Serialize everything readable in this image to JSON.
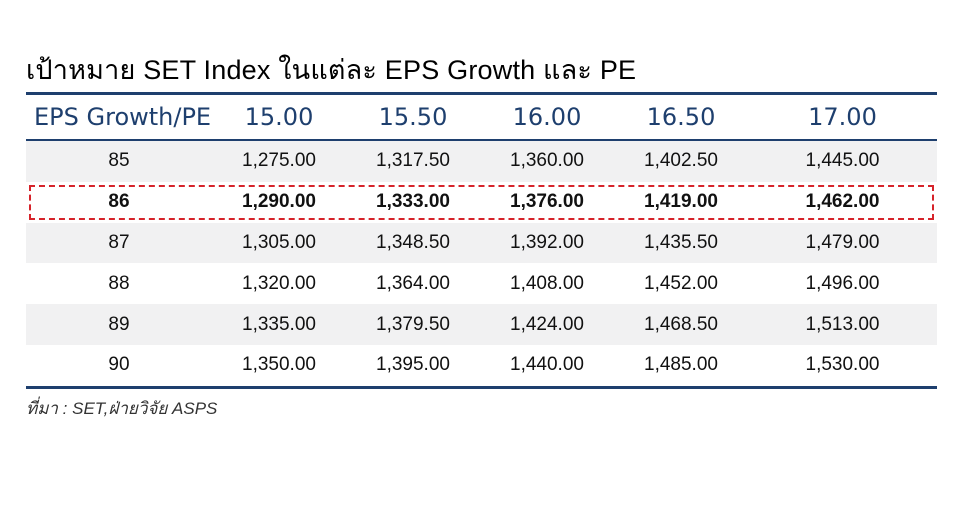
{
  "title": "เป้าหมาย SET Index ในแต่ละ EPS Growth และ PE",
  "table": {
    "header": [
      "EPS Growth/PE",
      "15.00",
      "15.50",
      "16.00",
      "16.50",
      "17.00"
    ],
    "rows": [
      {
        "eps": "85",
        "values": [
          "1,275.00",
          "1,317.50",
          "1,360.00",
          "1,402.50",
          "1,445.00"
        ]
      },
      {
        "eps": "86",
        "values": [
          "1,290.00",
          "1,333.00",
          "1,376.00",
          "1,419.00",
          "1,462.00"
        ]
      },
      {
        "eps": "87",
        "values": [
          "1,305.00",
          "1,348.50",
          "1,392.00",
          "1,435.50",
          "1,479.00"
        ]
      },
      {
        "eps": "88",
        "values": [
          "1,320.00",
          "1,364.00",
          "1,408.00",
          "1,452.00",
          "1,496.00"
        ]
      },
      {
        "eps": "89",
        "values": [
          "1,335.00",
          "1,379.50",
          "1,424.00",
          "1,468.50",
          "1,513.00"
        ]
      },
      {
        "eps": "90",
        "values": [
          "1,350.00",
          "1,395.00",
          "1,440.00",
          "1,485.00",
          "1,530.00"
        ]
      }
    ],
    "highlighted_row": "86"
  },
  "source": "ที่มา : SET,ฝ่ายวิจัย ASPS",
  "colors": {
    "header_text": "#1e3f6e",
    "rule": "#1e3f6e",
    "highlight_border": "#d6232a",
    "row_shade": "#f1f1f2"
  }
}
